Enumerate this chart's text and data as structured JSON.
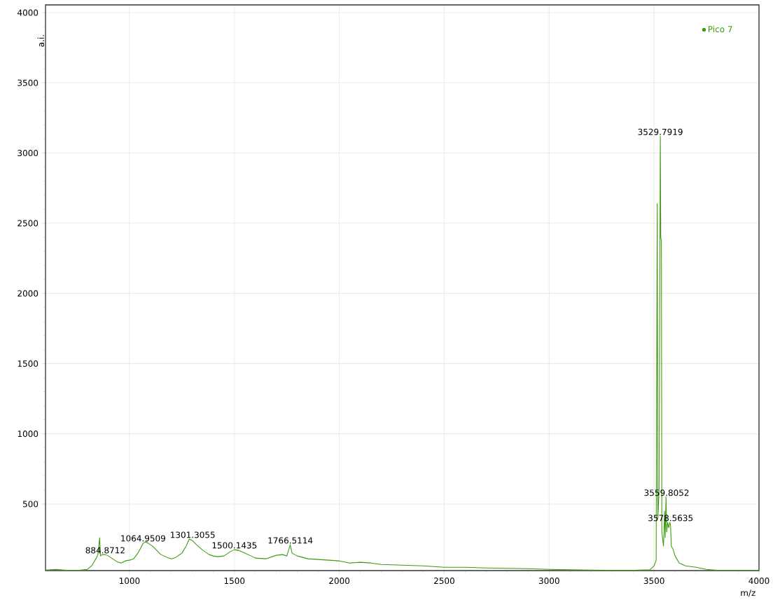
{
  "chart_data": {
    "type": "line",
    "xlabel": "m/z",
    "ylabel": "a.i.",
    "xlim": [
      600,
      4000
    ],
    "ylim": [
      26,
      4055
    ],
    "xticks": [
      1000,
      1500,
      2000,
      2500,
      3000,
      3500,
      4000
    ],
    "yticks": [
      500,
      1000,
      1500,
      2000,
      2500,
      3000,
      3500,
      4000
    ],
    "grid": true,
    "legend": "top right",
    "series": [
      {
        "name": "Pico 7",
        "color": "#3c9a0c",
        "x": [
          600,
          650,
          700,
          750,
          800,
          820,
          840,
          850,
          858,
          862,
          870,
          885,
          900,
          920,
          940,
          960,
          980,
          1000,
          1020,
          1040,
          1055,
          1065,
          1075,
          1090,
          1100,
          1110,
          1130,
          1150,
          1180,
          1200,
          1220,
          1250,
          1270,
          1285,
          1300,
          1320,
          1350,
          1380,
          1400,
          1420,
          1450,
          1480,
          1500,
          1520,
          1550,
          1580,
          1600,
          1650,
          1700,
          1730,
          1750,
          1766,
          1775,
          1800,
          1850,
          1900,
          1950,
          2000,
          2050,
          2100,
          2150,
          2200,
          2300,
          2400,
          2500,
          2600,
          2700,
          2800,
          2900,
          3000,
          3100,
          3200,
          3300,
          3400,
          3480,
          3500,
          3510,
          3515,
          3518,
          3524,
          3529.8,
          3532,
          3535,
          3537,
          3545,
          3550,
          3553,
          3557,
          3560,
          3565,
          3570,
          3575,
          3578.6,
          3582,
          3590,
          3600,
          3620,
          3650,
          3700,
          3750,
          3800,
          3900,
          4000
        ],
        "values": [
          30,
          35,
          28,
          27,
          35,
          60,
          110,
          140,
          260,
          130,
          140,
          140,
          130,
          110,
          90,
          80,
          95,
          100,
          110,
          150,
          190,
          220,
          230,
          220,
          210,
          200,
          170,
          140,
          120,
          110,
          120,
          150,
          200,
          250,
          240,
          210,
          170,
          140,
          130,
          125,
          130,
          160,
          175,
          170,
          150,
          130,
          115,
          110,
          135,
          140,
          130,
          210,
          150,
          130,
          110,
          105,
          100,
          95,
          80,
          85,
          80,
          70,
          65,
          60,
          50,
          50,
          45,
          42,
          40,
          35,
          32,
          30,
          28,
          28,
          32,
          60,
          100,
          2640,
          400,
          600,
          3120,
          2400,
          2370,
          300,
          200,
          450,
          260,
          550,
          300,
          370,
          330,
          370,
          350,
          200,
          180,
          130,
          80,
          60,
          50,
          35,
          28,
          27,
          27
        ]
      }
    ],
    "annotations": [
      {
        "text": "884.8712",
        "x": 884.8712,
        "y": 140
      },
      {
        "text": "1064.9509",
        "x": 1064.9509,
        "y": 225
      },
      {
        "text": "1301.3055",
        "x": 1301.3055,
        "y": 250
      },
      {
        "text": "1500.1435",
        "x": 1500.1435,
        "y": 175
      },
      {
        "text": "1766.5114",
        "x": 1766.5114,
        "y": 210
      },
      {
        "text": "3529.7919",
        "x": 3529.7919,
        "y": 3120
      },
      {
        "text": "3559.8052",
        "x": 3559.8052,
        "y": 550
      },
      {
        "text": "3578.5635",
        "x": 3578.5635,
        "y": 370
      }
    ]
  }
}
